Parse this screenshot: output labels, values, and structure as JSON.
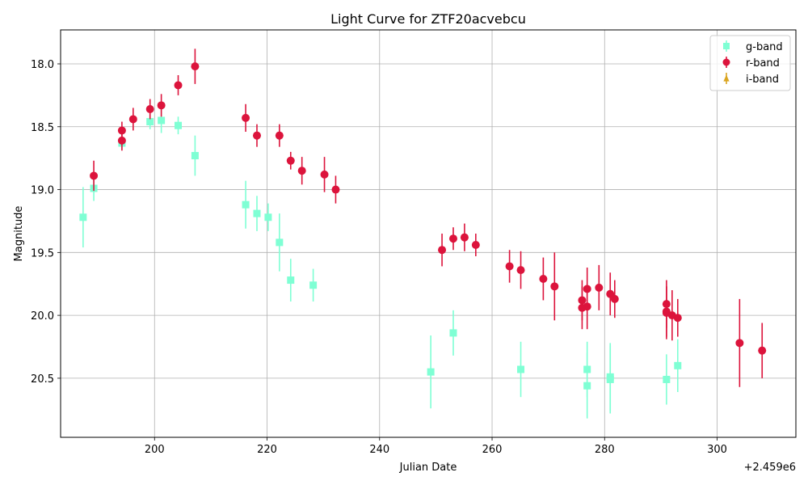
{
  "chart_data": {
    "type": "scatter",
    "title": "Light Curve for ZTF20acvebcu",
    "xlabel": "Julian Date",
    "ylabel": "Magnitude",
    "x_offset_label": "+2.459e6",
    "xlim": [
      183.3,
      314.0
    ],
    "ylim": [
      20.97,
      17.73
    ],
    "y_inverted": true,
    "xticks": [
      200,
      220,
      240,
      260,
      280,
      300
    ],
    "yticks": [
      18.0,
      18.5,
      19.0,
      19.5,
      20.0,
      20.5
    ],
    "ytick_labels": [
      "18.0",
      "18.5",
      "19.0",
      "19.5",
      "20.0",
      "20.5"
    ],
    "grid": true,
    "legend_position": "top-right",
    "series": [
      {
        "name": "g-band",
        "marker": "square",
        "color": "#7fffd4",
        "points": [
          {
            "x": 187.3,
            "y": 19.22,
            "err": 0.24
          },
          {
            "x": 189.2,
            "y": 18.99,
            "err": 0.1
          },
          {
            "x": 194.2,
            "y": 18.63,
            "err": 0.05
          },
          {
            "x": 199.2,
            "y": 18.46,
            "err": 0.06
          },
          {
            "x": 201.2,
            "y": 18.45,
            "err": 0.1
          },
          {
            "x": 204.2,
            "y": 18.49,
            "err": 0.07
          },
          {
            "x": 207.2,
            "y": 18.73,
            "err": 0.16
          },
          {
            "x": 216.2,
            "y": 19.12,
            "err": 0.19
          },
          {
            "x": 218.2,
            "y": 19.19,
            "err": 0.14
          },
          {
            "x": 220.2,
            "y": 19.22,
            "err": 0.11
          },
          {
            "x": 222.2,
            "y": 19.42,
            "err": 0.23
          },
          {
            "x": 224.2,
            "y": 19.72,
            "err": 0.17
          },
          {
            "x": 228.2,
            "y": 19.76,
            "err": 0.13
          },
          {
            "x": 249.1,
            "y": 20.45,
            "err": 0.29
          },
          {
            "x": 253.1,
            "y": 20.14,
            "err": 0.18
          },
          {
            "x": 265.1,
            "y": 20.43,
            "err": 0.22
          },
          {
            "x": 276.9,
            "y": 20.43,
            "err": 0.22
          },
          {
            "x": 276.9,
            "y": 20.56,
            "err": 0.26
          },
          {
            "x": 281.0,
            "y": 20.49,
            "err": 0.27
          },
          {
            "x": 281.0,
            "y": 20.51,
            "err": 0.27
          },
          {
            "x": 291.0,
            "y": 20.51,
            "err": 0.2
          },
          {
            "x": 293.0,
            "y": 20.4,
            "err": 0.21
          }
        ]
      },
      {
        "name": "r-band",
        "marker": "circle",
        "color": "#dc143c",
        "points": [
          {
            "x": 189.2,
            "y": 18.89,
            "err": 0.12
          },
          {
            "x": 194.2,
            "y": 18.53,
            "err": 0.07
          },
          {
            "x": 194.2,
            "y": 18.61,
            "err": 0.08
          },
          {
            "x": 196.2,
            "y": 18.44,
            "err": 0.09
          },
          {
            "x": 199.2,
            "y": 18.36,
            "err": 0.08
          },
          {
            "x": 201.2,
            "y": 18.33,
            "err": 0.09
          },
          {
            "x": 204.2,
            "y": 18.17,
            "err": 0.08
          },
          {
            "x": 207.2,
            "y": 18.02,
            "err": 0.14
          },
          {
            "x": 216.2,
            "y": 18.43,
            "err": 0.11
          },
          {
            "x": 218.2,
            "y": 18.57,
            "err": 0.09
          },
          {
            "x": 222.2,
            "y": 18.57,
            "err": 0.09
          },
          {
            "x": 224.2,
            "y": 18.77,
            "err": 0.07
          },
          {
            "x": 226.2,
            "y": 18.85,
            "err": 0.11
          },
          {
            "x": 230.2,
            "y": 18.88,
            "err": 0.14
          },
          {
            "x": 232.2,
            "y": 19.0,
            "err": 0.11
          },
          {
            "x": 251.1,
            "y": 19.48,
            "err": 0.13
          },
          {
            "x": 253.1,
            "y": 19.39,
            "err": 0.09
          },
          {
            "x": 255.1,
            "y": 19.38,
            "err": 0.11
          },
          {
            "x": 257.1,
            "y": 19.44,
            "err": 0.09
          },
          {
            "x": 263.1,
            "y": 19.61,
            "err": 0.13
          },
          {
            "x": 265.1,
            "y": 19.64,
            "err": 0.15
          },
          {
            "x": 269.1,
            "y": 19.71,
            "err": 0.17
          },
          {
            "x": 271.1,
            "y": 19.77,
            "err": 0.27
          },
          {
            "x": 276.0,
            "y": 19.94,
            "err": 0.17
          },
          {
            "x": 276.0,
            "y": 19.88,
            "err": 0.16
          },
          {
            "x": 276.9,
            "y": 19.93,
            "err": 0.18
          },
          {
            "x": 276.9,
            "y": 19.79,
            "err": 0.17
          },
          {
            "x": 279.0,
            "y": 19.78,
            "err": 0.18
          },
          {
            "x": 281.0,
            "y": 19.83,
            "err": 0.17
          },
          {
            "x": 281.8,
            "y": 19.87,
            "err": 0.15
          },
          {
            "x": 291.0,
            "y": 19.97,
            "err": 0.2
          },
          {
            "x": 291.0,
            "y": 19.91,
            "err": 0.19
          },
          {
            "x": 291.0,
            "y": 19.98,
            "err": 0.21
          },
          {
            "x": 292.0,
            "y": 20.0,
            "err": 0.2
          },
          {
            "x": 293.0,
            "y": 20.02,
            "err": 0.15
          },
          {
            "x": 304.0,
            "y": 20.22,
            "err": 0.35
          },
          {
            "x": 308.0,
            "y": 20.28,
            "err": 0.22
          }
        ]
      },
      {
        "name": "i-band",
        "marker": "triangle",
        "color": "#daa520",
        "points": []
      }
    ]
  }
}
